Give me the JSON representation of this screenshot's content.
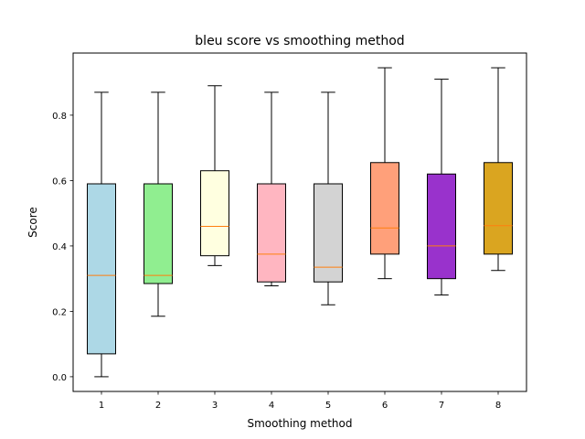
{
  "chart_data": {
    "type": "box",
    "title": "bleu score vs smoothing method",
    "xlabel": "Smoothing method",
    "ylabel": "Score",
    "ylim": [
      -0.045,
      0.99
    ],
    "yticks": [
      "0.0",
      "0.2",
      "0.4",
      "0.6",
      "0.8"
    ],
    "grid": false,
    "median_color": "#ff7f0e",
    "boxes": [
      {
        "label": "1",
        "min": 0.0,
        "q1": 0.07,
        "median": 0.31,
        "q3": 0.59,
        "max": 0.87,
        "color": "#add8e6"
      },
      {
        "label": "2",
        "min": 0.185,
        "q1": 0.285,
        "median": 0.31,
        "q3": 0.59,
        "max": 0.87,
        "color": "#90ee90"
      },
      {
        "label": "3",
        "min": 0.34,
        "q1": 0.37,
        "median": 0.46,
        "q3": 0.63,
        "max": 0.89,
        "color": "#ffffe0"
      },
      {
        "label": "4",
        "min": 0.278,
        "q1": 0.29,
        "median": 0.375,
        "q3": 0.59,
        "max": 0.87,
        "color": "#ffb6c1"
      },
      {
        "label": "5",
        "min": 0.22,
        "q1": 0.29,
        "median": 0.335,
        "q3": 0.59,
        "max": 0.87,
        "color": "#d3d3d3"
      },
      {
        "label": "6",
        "min": 0.3,
        "q1": 0.375,
        "median": 0.455,
        "q3": 0.655,
        "max": 0.945,
        "color": "#ffa07a"
      },
      {
        "label": "7",
        "min": 0.25,
        "q1": 0.3,
        "median": 0.4,
        "q3": 0.62,
        "max": 0.91,
        "color": "#9932cc"
      },
      {
        "label": "8",
        "min": 0.325,
        "q1": 0.375,
        "median": 0.462,
        "q3": 0.655,
        "max": 0.945,
        "color": "#daa520"
      }
    ]
  }
}
